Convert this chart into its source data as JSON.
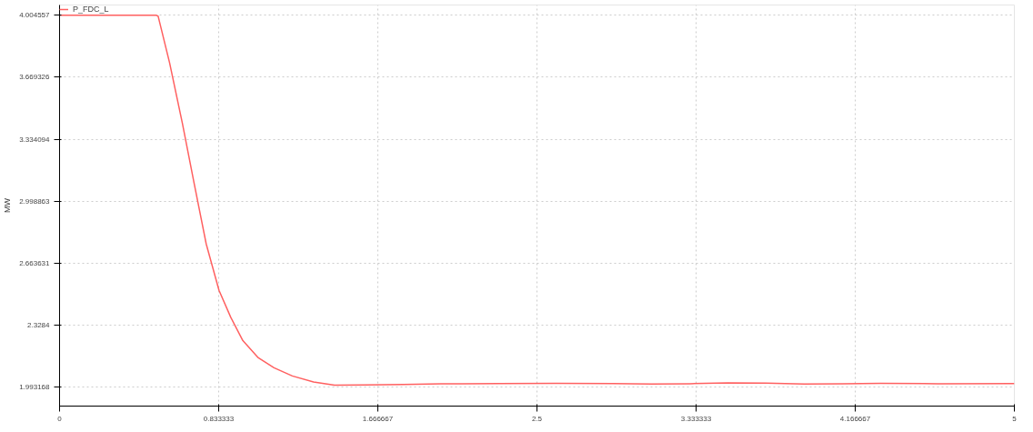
{
  "chart_data": {
    "type": "line",
    "ylabel": "MW",
    "legend": "top left",
    "grid": true,
    "line_style": "solid",
    "marker": "none",
    "xlim": [
      0,
      5
    ],
    "xticks": [
      0,
      {
        "value": 0.833333,
        "label": "0.833333"
      },
      {
        "value": 1.666667,
        "label": "1.666667"
      },
      2.5,
      {
        "value": 3.333333,
        "label": "3.333333"
      },
      {
        "value": 4.166667,
        "label": "4.166667"
      },
      5
    ],
    "ylim": [
      1.89,
      4.06
    ],
    "yticks": [
      4.004557,
      3.669326,
      3.334094,
      2.998863,
      2.663631,
      2.3284,
      1.993168
    ],
    "series": [
      {
        "name": "P_FDC_L",
        "color": "#ff6060",
        "x": [
          0,
          0.25,
          0.504,
          0.516,
          0.576,
          0.643,
          0.705,
          0.768,
          0.835,
          0.897,
          0.96,
          1.041,
          1.123,
          1.219,
          1.33,
          1.44,
          1.6,
          1.8,
          2.0,
          2.3,
          2.6,
          2.9,
          3.1,
          3.3,
          3.5,
          3.7,
          3.9,
          4.1,
          4.3,
          4.6,
          5.0
        ],
        "values": [
          4.005,
          4.005,
          4.005,
          4.0,
          3.748,
          3.421,
          3.094,
          2.767,
          2.516,
          2.369,
          2.244,
          2.151,
          2.097,
          2.053,
          2.02,
          2.003,
          2.004,
          2.007,
          2.01,
          2.012,
          2.013,
          2.012,
          2.009,
          2.011,
          2.016,
          2.014,
          2.009,
          2.01,
          2.013,
          2.011,
          2.012
        ]
      }
    ]
  }
}
